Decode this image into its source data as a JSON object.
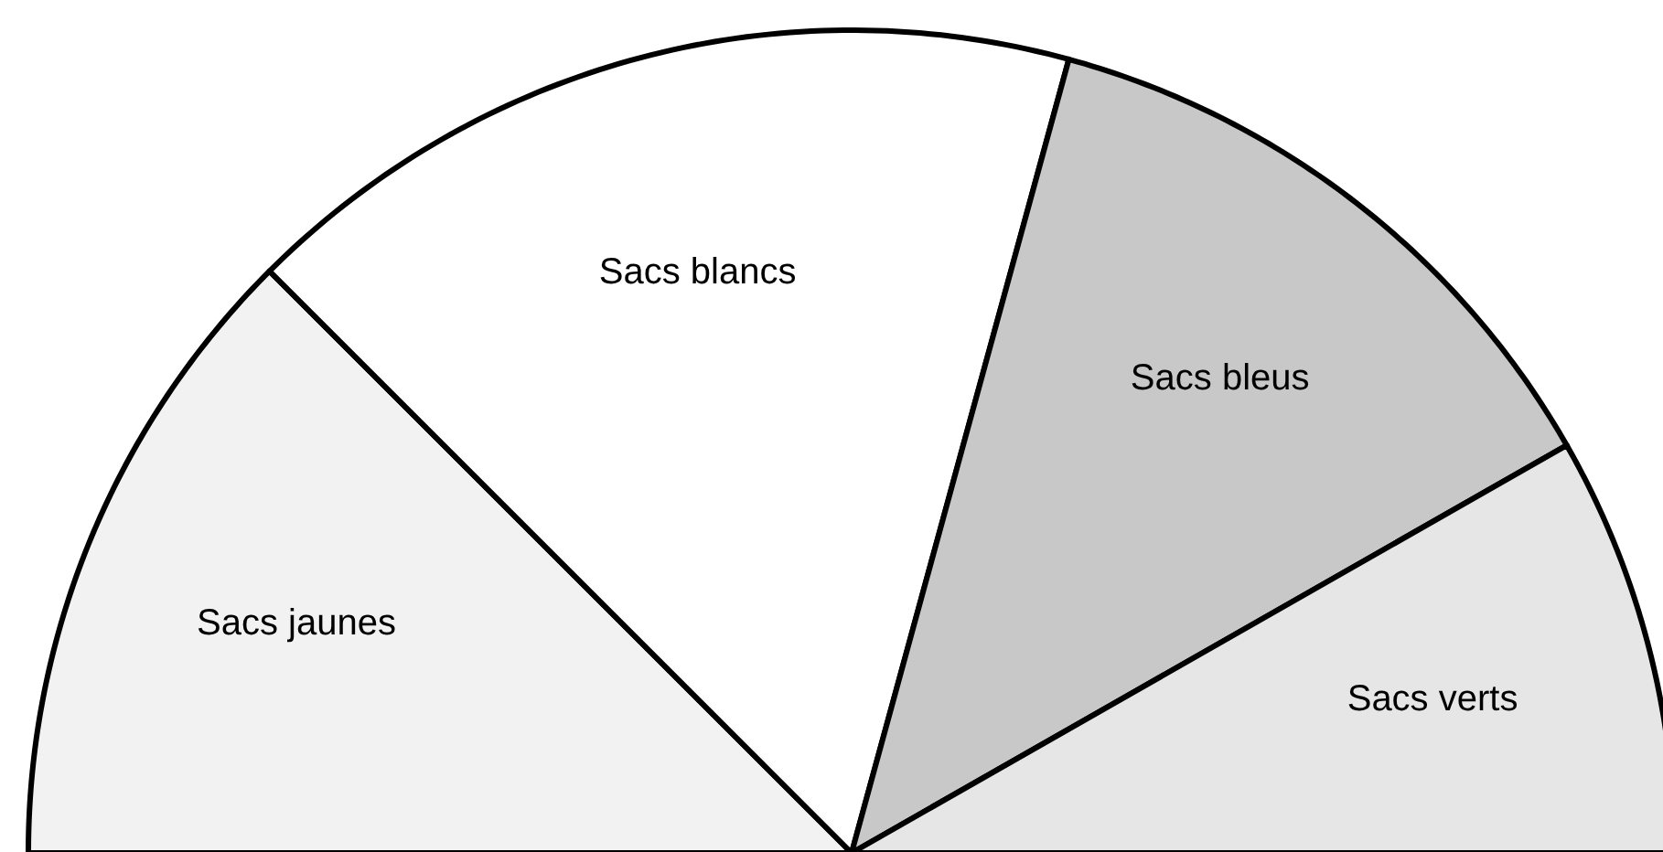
{
  "chart_data": {
    "type": "pie",
    "categories": [
      "Sacs jaunes",
      "Sacs blancs",
      "Sacs bleus",
      "Sacs verts"
    ],
    "values": [
      25,
      33.5,
      25,
      16.5
    ],
    "colors": [
      "#f2f2f2",
      "#ffffff",
      "#c8c8c8",
      "#e6e6e6"
    ]
  }
}
